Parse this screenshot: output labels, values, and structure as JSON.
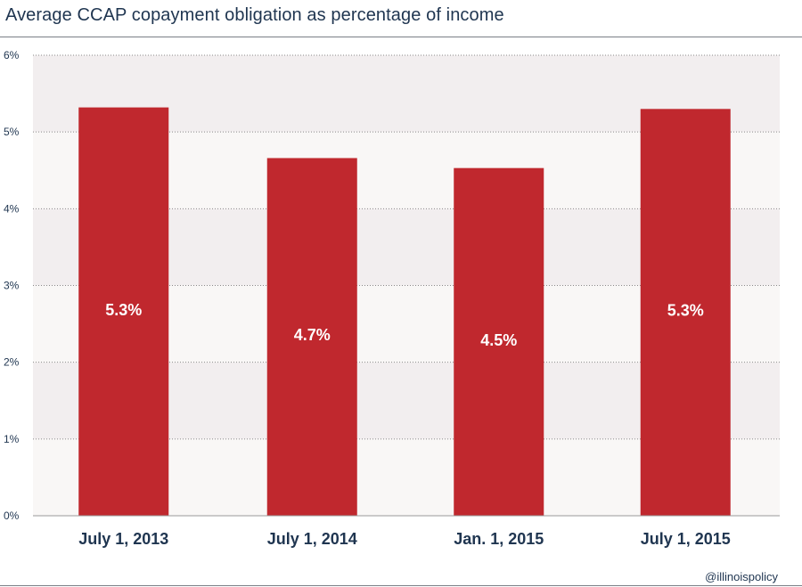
{
  "chart_data": {
    "type": "bar",
    "title": "Average CCAP copayment obligation as percentage of income",
    "categories": [
      "July 1, 2013",
      "July 1, 2014",
      "Jan. 1, 2015",
      "July 1, 2015"
    ],
    "values": [
      5.32,
      4.66,
      4.53,
      5.3
    ],
    "data_labels": [
      "5.3%",
      "4.7%",
      "4.5%",
      "5.3%"
    ],
    "ylim": [
      0,
      6
    ],
    "yticks": [
      0,
      1,
      2,
      3,
      4,
      5,
      6
    ],
    "ytick_labels": [
      "0%",
      "1%",
      "2%",
      "3%",
      "4%",
      "5%",
      "6%"
    ],
    "xlabel": "",
    "ylabel": "",
    "grid": true,
    "colors": {
      "bar": "#c0282e",
      "band_dark": "#f2eeef",
      "band_light": "#f9f7f6",
      "text": "#1f3550",
      "grid": "#8a8a8a"
    }
  },
  "credit": "@illinoispolicy"
}
